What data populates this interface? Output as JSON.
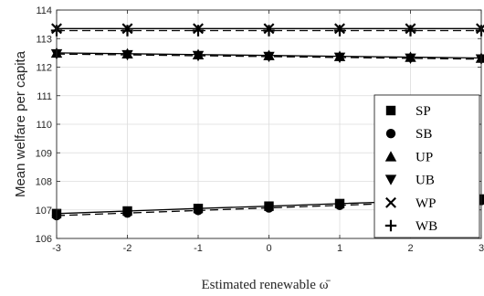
{
  "chart_data": {
    "type": "line",
    "title": "",
    "xlabel": "Estimated renewable ω̄",
    "ylabel": "Mean welfare per capita",
    "xlim": [
      -3,
      3
    ],
    "ylim": [
      106,
      114
    ],
    "xticks": [
      -3,
      -2,
      -1,
      0,
      1,
      2,
      3
    ],
    "yticks": [
      106,
      107,
      108,
      109,
      110,
      111,
      112,
      113,
      114
    ],
    "xtick_labels": [
      "-3",
      "-2",
      "-1",
      "0",
      "1",
      "2",
      "3"
    ],
    "ytick_labels": [
      "106",
      "107",
      "108",
      "109",
      "110",
      "111",
      "112",
      "113",
      "114"
    ],
    "grid": true,
    "legend_position": "right",
    "x": [
      -3,
      -2,
      -1,
      0,
      1,
      2,
      3
    ],
    "series": [
      {
        "name": "SP",
        "marker": "square",
        "dash": "solid",
        "values": [
          106.87,
          106.96,
          107.05,
          107.13,
          107.22,
          107.3,
          107.38
        ]
      },
      {
        "name": "SB",
        "marker": "circle",
        "dash": "dashed",
        "values": [
          106.8,
          106.89,
          106.98,
          107.07,
          107.16,
          107.25,
          107.33
        ]
      },
      {
        "name": "UP",
        "marker": "triangle-up",
        "dash": "solid",
        "values": [
          112.5,
          112.47,
          112.44,
          112.41,
          112.38,
          112.35,
          112.32
        ]
      },
      {
        "name": "UB",
        "marker": "triangle-down",
        "dash": "dashed",
        "values": [
          112.46,
          112.43,
          112.4,
          112.37,
          112.34,
          112.31,
          112.28
        ]
      },
      {
        "name": "WP",
        "marker": "x",
        "dash": "solid",
        "values": [
          113.35,
          113.35,
          113.35,
          113.35,
          113.35,
          113.35,
          113.35
        ]
      },
      {
        "name": "WB",
        "marker": "plus",
        "dash": "dashed",
        "values": [
          113.28,
          113.28,
          113.28,
          113.28,
          113.28,
          113.28,
          113.28
        ]
      }
    ]
  }
}
